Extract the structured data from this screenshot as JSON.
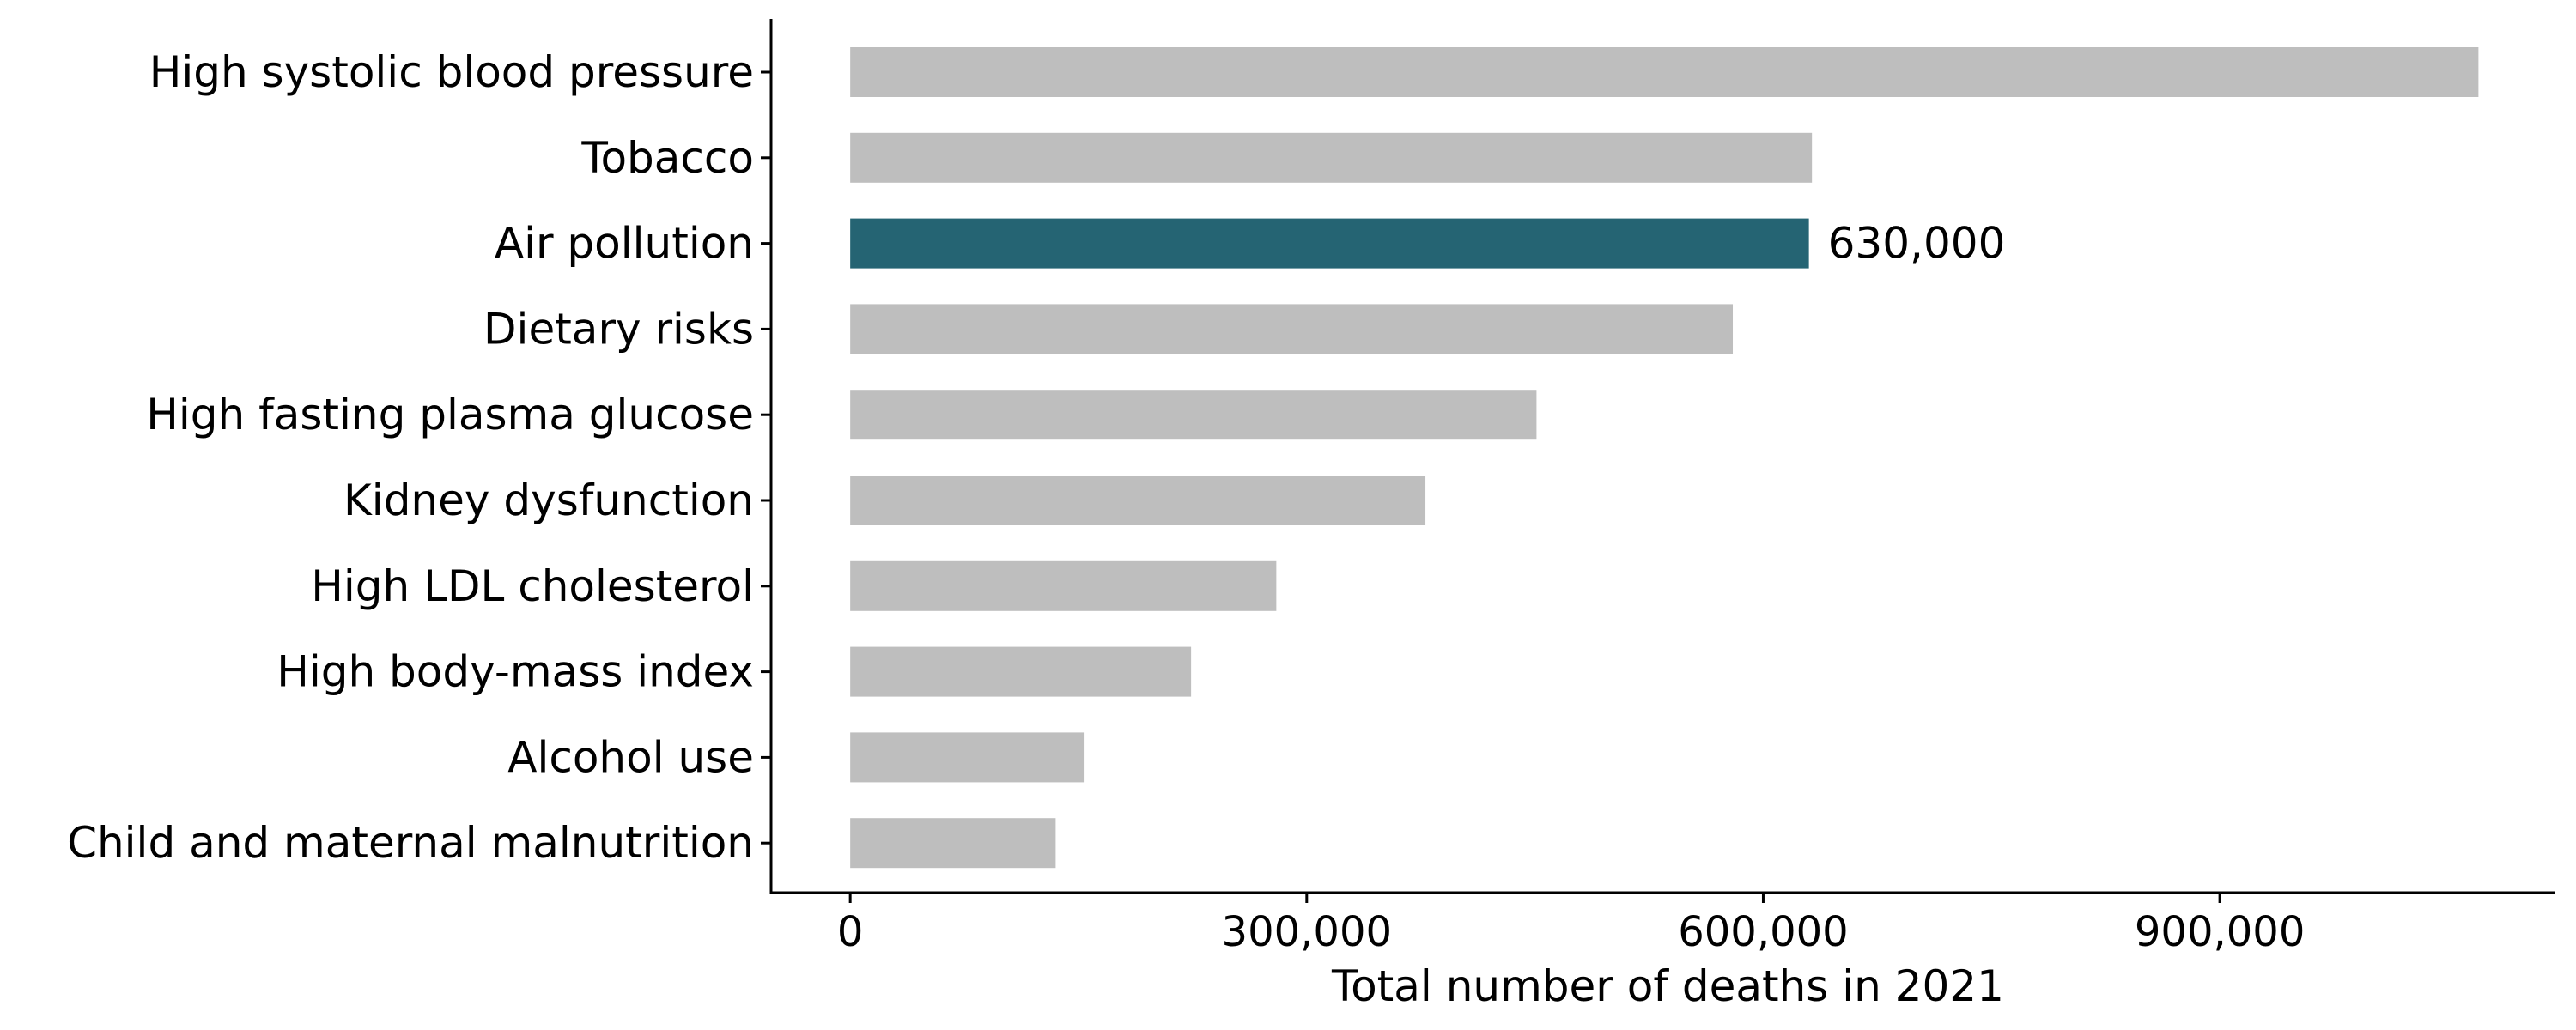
{
  "chart_data": {
    "type": "bar",
    "orientation": "horizontal",
    "title": "",
    "xlabel": "Total number of deaths in 2021",
    "ylabel": "",
    "xlim": [
      -52000,
      1120000
    ],
    "xticks": [
      0,
      300000,
      600000,
      900000
    ],
    "xtick_labels": [
      "0",
      "300,000",
      "600,000",
      "900,000"
    ],
    "grid": false,
    "legend": "none",
    "categories": [
      "High systolic blood pressure",
      "Tobacco",
      "Air pollution",
      "Dietary risks",
      "High fasting plasma glucose",
      "Kidney dysfunction",
      "High LDL cholesterol",
      "High body-mass index",
      "Alcohol use",
      "Child and maternal malnutrition"
    ],
    "values": [
      1070000,
      632000,
      630000,
      580000,
      451000,
      378000,
      280000,
      224000,
      154000,
      135000
    ],
    "highlight": {
      "category": "Air pollution",
      "label": "630,000"
    },
    "colors": {
      "default_bar": "#bebebe",
      "highlight_bar": "#256473",
      "axis": "#000000"
    }
  }
}
